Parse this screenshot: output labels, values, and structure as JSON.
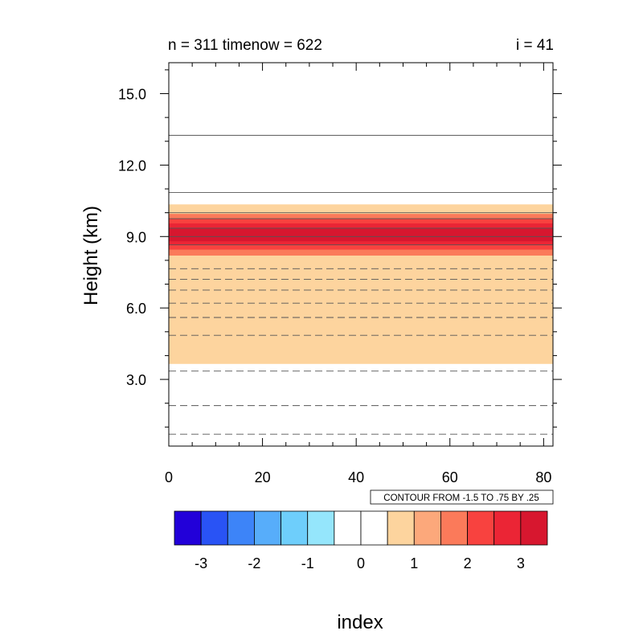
{
  "chart_data": {
    "type": "heatmap",
    "title_left": "n = 311 timenow = 622",
    "title_right": "i = 41",
    "xlabel": "",
    "ylabel": "Height (km)",
    "xlim": [
      0,
      82
    ],
    "ylim": [
      0.2,
      16.3
    ],
    "x_ticks": [
      "0",
      "20",
      "40",
      "60",
      "80"
    ],
    "y_ticks": [
      "3.0",
      "6.0",
      "9.0",
      "12.0",
      "15.0"
    ],
    "bands": [
      {
        "from": 3.65,
        "to": 10.35,
        "color": "#FDD49E"
      },
      {
        "from": 8.2,
        "to": 9.95,
        "color": "#FB7A5A"
      },
      {
        "from": 8.45,
        "to": 9.75,
        "color": "#F8423F"
      },
      {
        "from": 8.65,
        "to": 9.55,
        "color": "#EB2535"
      },
      {
        "from": 8.8,
        "to": 9.35,
        "color": "#D7172F"
      }
    ],
    "solid_contours": [
      8.65,
      9.0,
      9.35,
      9.75,
      10.0,
      10.85,
      13.25
    ],
    "dashed_contours": [
      0.7,
      1.9,
      3.35,
      4.85,
      5.6,
      6.2,
      6.75,
      7.2,
      7.65
    ],
    "contour_info": "CONTOUR FROM -1.5 TO .75 BY .25",
    "colorbar": {
      "label": "index",
      "colors": [
        "#2200D9",
        "#2953F5",
        "#3D84F8",
        "#57ADFA",
        "#6ECEFB",
        "#95E6FC",
        "#FFFFFF",
        "#FFFFFF",
        "#FDD49E",
        "#FCA87B",
        "#FB7A5A",
        "#F8423F",
        "#EB2535",
        "#D7172F"
      ],
      "tick_labels": [
        "-3",
        "-2",
        "-1",
        "0",
        "1",
        "2",
        "3"
      ]
    }
  }
}
